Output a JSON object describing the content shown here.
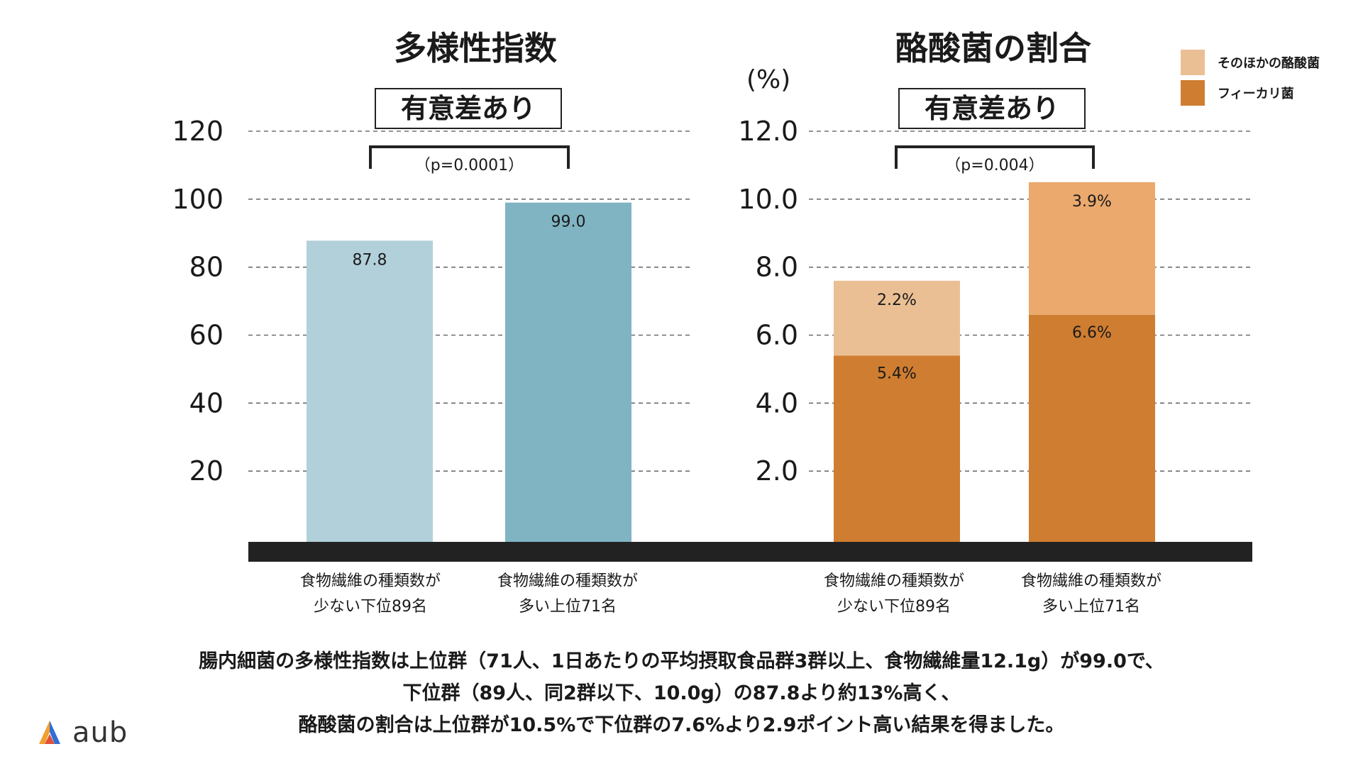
{
  "chart_data": [
    {
      "type": "bar",
      "title": "多様性指数",
      "significance": "有意差あり",
      "pvalue": "（p=0.0001）",
      "ylim": [
        0,
        120
      ],
      "ticks": [
        20,
        40,
        60,
        80,
        100,
        120
      ],
      "tick_labels": [
        "20",
        "40",
        "60",
        "80",
        "100",
        "120"
      ],
      "categories": [
        [
          "食物繊維の種類数が",
          "少ない下位89名"
        ],
        [
          "食物繊維の種類数が",
          "多い上位71名"
        ]
      ],
      "values": [
        87.8,
        99.0
      ],
      "value_labels": [
        "87.8",
        "99.0"
      ],
      "colors": [
        "#b2d0da",
        "#80b4c3"
      ]
    },
    {
      "type": "bar",
      "stacked": true,
      "title": "酪酸菌の割合",
      "unit": "(%)",
      "significance": "有意差あり",
      "pvalue": "（p=0.004）",
      "ylim": [
        0,
        12.0
      ],
      "ticks": [
        2.0,
        4.0,
        6.0,
        8.0,
        10.0,
        12.0
      ],
      "tick_labels": [
        "2.0",
        "4.0",
        "6.0",
        "8.0",
        "10.0",
        "12.0"
      ],
      "categories": [
        [
          "食物繊維の種類数が",
          "少ない下位89名"
        ],
        [
          "食物繊維の種類数が",
          "多い上位71名"
        ]
      ],
      "series": [
        {
          "name": "フィーカリ菌",
          "values": [
            5.4,
            6.6
          ],
          "labels": [
            "5.4%",
            "6.6%"
          ],
          "color": "#cf7d31"
        },
        {
          "name": "そのほかの酪酸菌",
          "values": [
            2.2,
            3.9
          ],
          "labels": [
            "2.2%",
            "3.9%"
          ],
          "colors": [
            "#ebbf94",
            "#eba96d"
          ],
          "legend_color": "#ebbf94"
        }
      ]
    }
  ],
  "summary": [
    "腸内細菌の多様性指数は上位群（71人、1日あたりの平均摂取食品群3群以上、食物繊維量12.1g）が99.0で、",
    "下位群（89人、同2群以下、10.0g）の87.8より約13%高く、",
    "酪酸菌の割合は上位群が10.5%で下位群の7.6%より2.9ポイント高い結果を得ました。"
  ],
  "logo": {
    "text": "aub"
  }
}
